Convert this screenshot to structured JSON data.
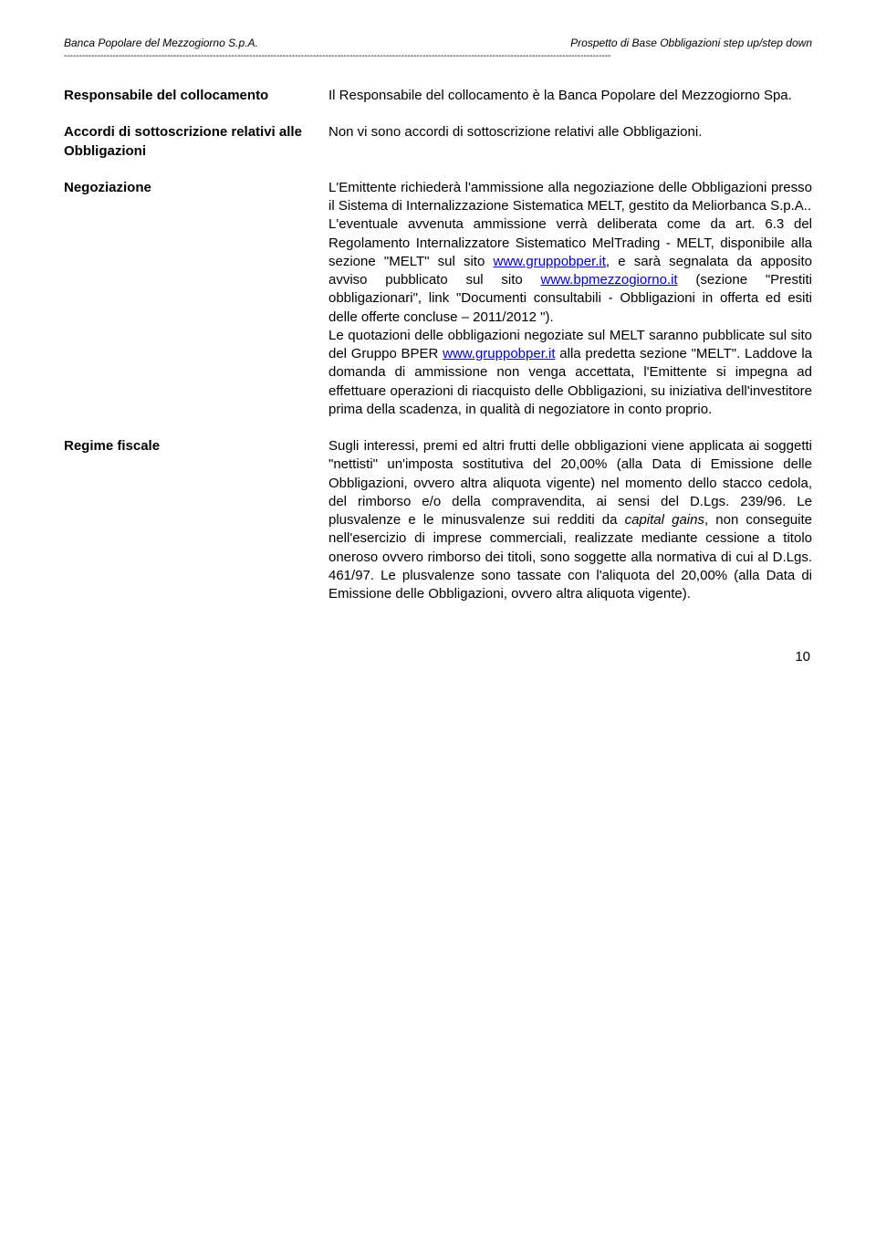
{
  "header": {
    "left": "Banca Popolare del Mezzogiorno S.p.A.",
    "right": "Prospetto di Base Obbligazioni step up/step down",
    "divider": "------------------------------------------------------------------------------------------------------------------------------------------------------------------------------------"
  },
  "sections": [
    {
      "label": "Responsabile del collocamento",
      "body": "Il Responsabile del collocamento è la Banca Popolare del Mezzogiorno Spa."
    },
    {
      "label": "Accordi di sottoscrizione relativi alle Obbligazioni",
      "body": "Non vi sono accordi di sottoscrizione relativi alle Obbligazioni."
    },
    {
      "label": "Negoziazione",
      "body_html": "L'Emittente richiederà l'ammissione alla negoziazione delle Obbligazioni presso il Sistema di Internalizzazione Sistematica MELT, gestito da Meliorbanca S.p.A..<br>L'eventuale avvenuta ammissione verrà deliberata come da art. 6.3 del Regolamento Internalizzatore Sistematico MelTrading - MELT, disponibile alla sezione \"MELT\" sul sito <span class=\"link\">www.gruppobper.it</span>, e sarà segnalata da apposito avviso pubblicato sul sito <span class=\"link\">www.bpmezzogiorno.it</span> (sezione \"Prestiti obbligazionari\", link \"Documenti consultabili - Obbligazioni in offerta ed esiti delle offerte concluse – 2011/2012 \").<br>Le quotazioni delle obbligazioni negoziate sul MELT saranno pubblicate sul sito del Gruppo BPER <span class=\"link\">www.gruppobper.it</span> alla predetta sezione \"MELT\". Laddove la domanda di ammissione non venga accettata, l'Emittente si impegna ad effettuare operazioni di riacquisto delle Obbligazioni, su iniziativa dell'investitore prima della scadenza, in qualità di negoziatore in conto proprio."
    },
    {
      "label": "Regime fiscale",
      "body_html": "Sugli interessi, premi ed altri frutti delle obbligazioni viene applicata ai soggetti \"nettisti\" un'imposta sostitutiva del 20,00% (alla Data di Emissione delle Obbligazioni, ovvero altra aliquota vigente) nel momento dello stacco cedola, del rimborso e/o della compravendita, ai sensi del D.Lgs. 239/96. Le plusvalenze e le minusvalenze sui redditi da <span class=\"italic\">capital gains</span>, non conseguite nell'esercizio di imprese commerciali, realizzate mediante cessione a titolo oneroso ovvero rimborso dei titoli, sono soggette alla normativa di cui al D.Lgs. 461/97. Le plusvalenze sono tassate con l'aliquota del 20,00% (alla Data di Emissione delle Obbligazioni, ovvero altra aliquota vigente)."
    }
  ],
  "page_number": "10"
}
